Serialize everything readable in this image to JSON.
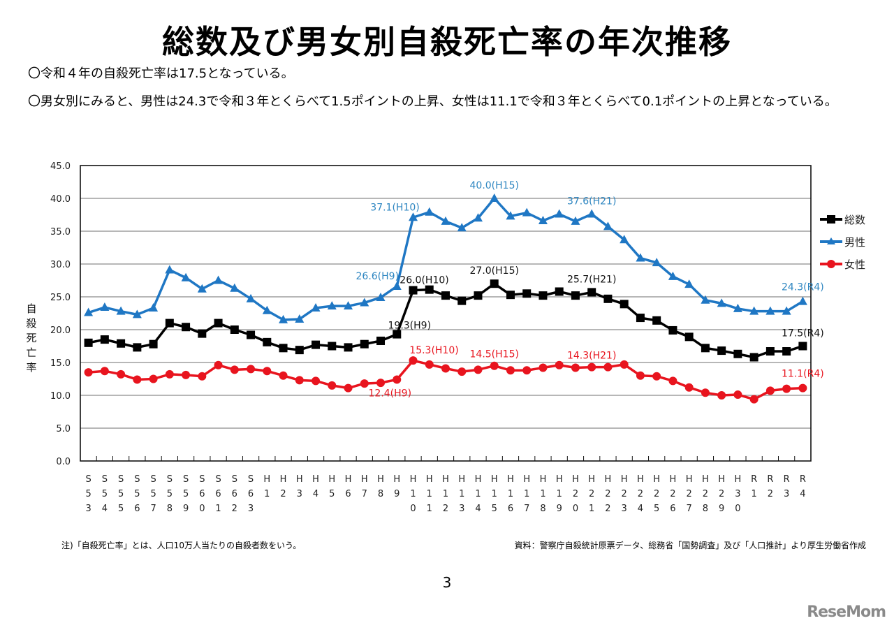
{
  "page": {
    "title": "総数及び男女別自殺死亡率の年次推移",
    "bullets": [
      "〇令和４年の自殺死亡率は17.5となっている。",
      "〇男女別にみると、男性は24.3で令和３年とくらべて1.5ポイントの上昇、女性は11.1で令和３年とくらべて0.1ポイントの上昇となっている。"
    ],
    "note_left": "注)「自殺死亡率」とは、人口10万人当たりの自殺者数をいう。",
    "note_right": "資料：警察庁自殺統計原票データ、総務省「国勢調査」及び「人口推計」より厚生労働省作成",
    "page_number": "3",
    "logo": "ReseMom"
  },
  "chart_data": {
    "type": "line",
    "title": "",
    "xlabel": "",
    "ylabel": "自殺死亡率",
    "ylim": [
      0,
      45
    ],
    "yticks": [
      "0.0",
      "5.0",
      "10.0",
      "15.0",
      "20.0",
      "25.0",
      "30.0",
      "35.0",
      "40.0",
      "45.0"
    ],
    "grid": true,
    "legend_position": "right",
    "categories": [
      [
        "S",
        "5",
        "3"
      ],
      [
        "S",
        "5",
        "4"
      ],
      [
        "S",
        "5",
        "5"
      ],
      [
        "S",
        "5",
        "6"
      ],
      [
        "S",
        "5",
        "7"
      ],
      [
        "S",
        "5",
        "8"
      ],
      [
        "S",
        "5",
        "9"
      ],
      [
        "S",
        "6",
        "0"
      ],
      [
        "S",
        "6",
        "1"
      ],
      [
        "S",
        "6",
        "2"
      ],
      [
        "S",
        "6",
        "3"
      ],
      [
        "H",
        "1",
        ""
      ],
      [
        "H",
        "2",
        ""
      ],
      [
        "H",
        "3",
        ""
      ],
      [
        "H",
        "4",
        ""
      ],
      [
        "H",
        "5",
        ""
      ],
      [
        "H",
        "6",
        ""
      ],
      [
        "H",
        "7",
        ""
      ],
      [
        "H",
        "8",
        ""
      ],
      [
        "H",
        "9",
        ""
      ],
      [
        "H",
        "1",
        "0"
      ],
      [
        "H",
        "1",
        "1"
      ],
      [
        "H",
        "1",
        "2"
      ],
      [
        "H",
        "1",
        "3"
      ],
      [
        "H",
        "1",
        "4"
      ],
      [
        "H",
        "1",
        "5"
      ],
      [
        "H",
        "1",
        "6"
      ],
      [
        "H",
        "1",
        "7"
      ],
      [
        "H",
        "1",
        "8"
      ],
      [
        "H",
        "1",
        "9"
      ],
      [
        "H",
        "2",
        "0"
      ],
      [
        "H",
        "2",
        "1"
      ],
      [
        "H",
        "2",
        "2"
      ],
      [
        "H",
        "2",
        "3"
      ],
      [
        "H",
        "2",
        "4"
      ],
      [
        "H",
        "2",
        "5"
      ],
      [
        "H",
        "2",
        "6"
      ],
      [
        "H",
        "2",
        "7"
      ],
      [
        "H",
        "2",
        "8"
      ],
      [
        "H",
        "2",
        "9"
      ],
      [
        "H",
        "3",
        "0"
      ],
      [
        "R",
        "1",
        ""
      ],
      [
        "R",
        "2",
        ""
      ],
      [
        "R",
        "3",
        ""
      ],
      [
        "R",
        "4",
        ""
      ]
    ],
    "series": [
      {
        "name": "総数",
        "color": "#000000",
        "marker": "square",
        "values": [
          18.0,
          18.5,
          17.9,
          17.3,
          17.8,
          21.0,
          20.4,
          19.4,
          21.0,
          20.0,
          19.2,
          18.1,
          17.2,
          16.9,
          17.7,
          17.5,
          17.3,
          17.8,
          18.3,
          19.3,
          26.0,
          26.1,
          25.2,
          24.4,
          25.2,
          27.0,
          25.3,
          25.5,
          25.2,
          25.8,
          25.2,
          25.7,
          24.7,
          23.9,
          21.8,
          21.4,
          19.9,
          18.9,
          17.2,
          16.8,
          16.3,
          15.8,
          16.7,
          16.7,
          17.5
        ],
        "labels": [
          {
            "index": 19,
            "text": "19.3(H9)"
          },
          {
            "index": 20,
            "text": "26.0(H10)"
          },
          {
            "index": 25,
            "text": "27.0(H15)"
          },
          {
            "index": 31,
            "text": "25.7(H21)"
          },
          {
            "index": 44,
            "text": "17.5(R4)"
          }
        ]
      },
      {
        "name": "男性",
        "color": "#1F77C4",
        "marker": "triangle",
        "values": [
          22.6,
          23.4,
          22.8,
          22.3,
          23.3,
          29.1,
          27.9,
          26.2,
          27.5,
          26.3,
          24.7,
          22.9,
          21.5,
          21.6,
          23.3,
          23.6,
          23.6,
          24.1,
          24.9,
          26.6,
          37.1,
          37.9,
          36.5,
          35.5,
          37.0,
          40.0,
          37.3,
          37.8,
          36.6,
          37.6,
          36.5,
          37.6,
          35.7,
          33.7,
          30.9,
          30.2,
          28.1,
          26.9,
          24.5,
          24.0,
          23.2,
          22.8,
          22.8,
          22.8,
          24.3
        ],
        "labels": [
          {
            "index": 19,
            "text": "26.6(H9)"
          },
          {
            "index": 20,
            "text": "37.1(H10)"
          },
          {
            "index": 25,
            "text": "40.0(H15)"
          },
          {
            "index": 31,
            "text": "37.6(H21)"
          },
          {
            "index": 44,
            "text": "24.3(R4)"
          }
        ]
      },
      {
        "name": "女性",
        "color": "#E8141E",
        "marker": "circle",
        "values": [
          13.5,
          13.7,
          13.2,
          12.4,
          12.5,
          13.2,
          13.1,
          12.9,
          14.6,
          13.9,
          14.0,
          13.7,
          13.0,
          12.3,
          12.2,
          11.5,
          11.1,
          11.8,
          11.9,
          12.4,
          15.3,
          14.7,
          14.1,
          13.6,
          13.9,
          14.5,
          13.8,
          13.8,
          14.2,
          14.6,
          14.2,
          14.3,
          14.3,
          14.7,
          13.0,
          12.9,
          12.2,
          11.2,
          10.4,
          10.0,
          10.1,
          9.4,
          10.7,
          11.0,
          11.1
        ],
        "labels": [
          {
            "index": 19,
            "text": "12.4(H9)"
          },
          {
            "index": 20,
            "text": "15.3(H10)"
          },
          {
            "index": 25,
            "text": "14.5(H15)"
          },
          {
            "index": 31,
            "text": "14.3(H21)"
          },
          {
            "index": 44,
            "text": "11.1(R4)"
          }
        ]
      }
    ]
  }
}
